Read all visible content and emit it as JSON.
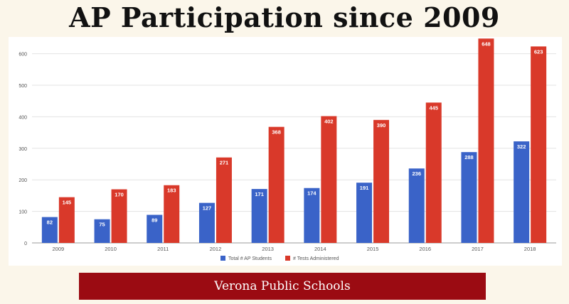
{
  "title": "AP Participation since 2009",
  "footer": "Verona Public Schools",
  "colors": {
    "background": "#fbf6ea",
    "students": "#3a63c8",
    "tests": "#d9392a",
    "footer_bg": "#9b0b12"
  },
  "chart_data": {
    "type": "bar",
    "categories": [
      "2009",
      "2010",
      "2011",
      "2012",
      "2013",
      "2014",
      "2015",
      "2016",
      "2017",
      "2018"
    ],
    "series": [
      {
        "name": "Total # AP Students",
        "values": [
          82,
          75,
          89,
          127,
          171,
          174,
          191,
          236,
          288,
          322
        ]
      },
      {
        "name": "# Tests Administered",
        "values": [
          145,
          170,
          183,
          271,
          368,
          402,
          390,
          445,
          648,
          623
        ]
      }
    ],
    "yticks": [
      0,
      100,
      200,
      300,
      400,
      500,
      600
    ],
    "ylim": [
      0,
      648
    ],
    "grid": true,
    "legend_position": "bottom",
    "data_labels": true
  }
}
